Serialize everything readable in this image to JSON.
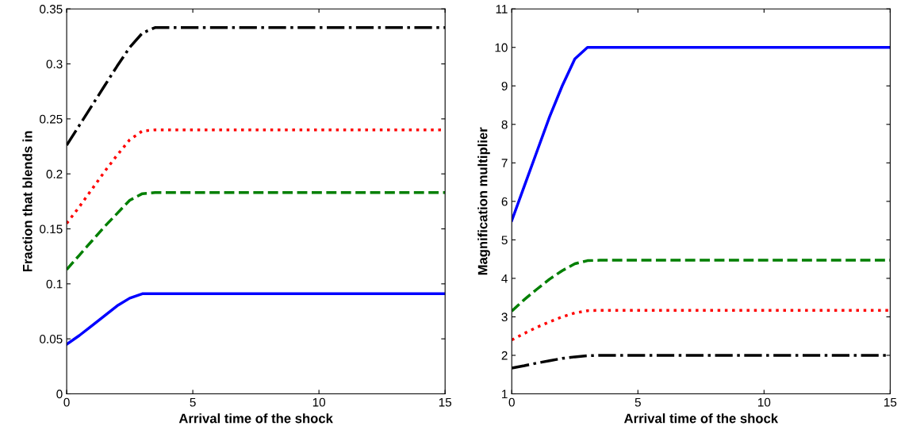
{
  "chart_data": [
    {
      "type": "line",
      "xlabel": "Arrival time of the shock",
      "ylabel": "Fraction that blends in",
      "xlim": [
        0,
        15
      ],
      "xticks": [
        0,
        5,
        10,
        15
      ],
      "ylim": [
        0,
        0.35
      ],
      "yticks": [
        0,
        0.05,
        0.1,
        0.15,
        0.2,
        0.25,
        0.3,
        0.35
      ],
      "grid": false,
      "marker": "none",
      "x": [
        0,
        0.5,
        1,
        1.5,
        2,
        2.5,
        3,
        3.5,
        15
      ],
      "series": [
        {
          "color": "#000000",
          "line_style": "dashdot",
          "values": [
            0.226,
            0.244,
            0.262,
            0.28,
            0.298,
            0.315,
            0.328,
            0.333,
            0.333
          ]
        },
        {
          "color": "#ff0000",
          "line_style": "dotted",
          "values": [
            0.155,
            0.17,
            0.186,
            0.202,
            0.217,
            0.231,
            0.239,
            0.24,
            0.24
          ]
        },
        {
          "color": "#007f00",
          "line_style": "dashed",
          "values": [
            0.113,
            0.126,
            0.139,
            0.152,
            0.164,
            0.176,
            0.182,
            0.183,
            0.183
          ]
        },
        {
          "color": "#0000ff",
          "line_style": "solid",
          "values": [
            0.045,
            0.053,
            0.062,
            0.071,
            0.08,
            0.087,
            0.091,
            0.091,
            0.091
          ]
        }
      ]
    },
    {
      "type": "line",
      "xlabel": "Arrival time of the shock",
      "ylabel": "Magnification multiplier",
      "xlim": [
        0,
        15
      ],
      "xticks": [
        0,
        5,
        10,
        15
      ],
      "ylim": [
        1,
        11
      ],
      "yticks": [
        1,
        2,
        3,
        4,
        5,
        6,
        7,
        8,
        9,
        10,
        11
      ],
      "grid": false,
      "marker": "none",
      "x": [
        0,
        0.5,
        1,
        1.5,
        2,
        2.5,
        3,
        3.5,
        15
      ],
      "series": [
        {
          "color": "#0000ff",
          "line_style": "solid",
          "values": [
            5.5,
            6.4,
            7.3,
            8.2,
            9.0,
            9.7,
            10,
            10,
            10
          ]
        },
        {
          "color": "#007f00",
          "line_style": "dashed",
          "values": [
            3.15,
            3.45,
            3.72,
            3.98,
            4.2,
            4.38,
            4.46,
            4.47,
            4.47
          ]
        },
        {
          "color": "#ff0000",
          "line_style": "dotted",
          "values": [
            2.4,
            2.57,
            2.73,
            2.87,
            3.0,
            3.1,
            3.16,
            3.17,
            3.17
          ]
        },
        {
          "color": "#000000",
          "line_style": "dashdot",
          "values": [
            1.67,
            1.73,
            1.8,
            1.86,
            1.92,
            1.96,
            1.99,
            2.0,
            2.0
          ]
        }
      ]
    }
  ]
}
